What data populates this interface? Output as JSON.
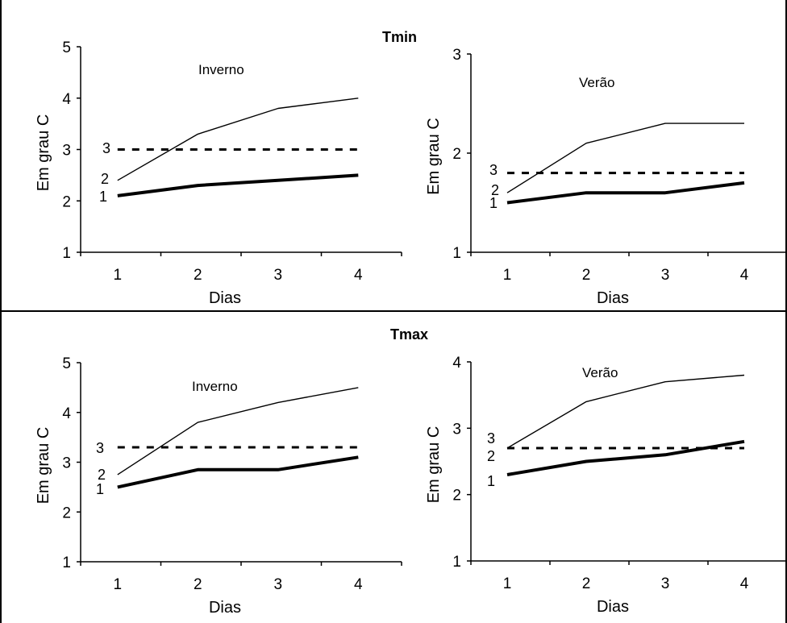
{
  "figure": {
    "sections": [
      {
        "title": "Tmin",
        "panels": [
          0,
          1
        ]
      },
      {
        "title": "Tmax",
        "panels": [
          2,
          3
        ]
      }
    ]
  },
  "chart_data": [
    {
      "type": "line",
      "title": "Inverno",
      "section": "Tmin",
      "xlabel": "Dias",
      "ylabel": "Em grau C",
      "x": [
        1,
        2,
        3,
        4
      ],
      "xticks": [
        "1",
        "2",
        "3",
        "4"
      ],
      "yticks": [
        "1",
        "2",
        "3",
        "4",
        "5"
      ],
      "ylim": [
        1,
        5
      ],
      "grid": false,
      "series": [
        {
          "name": "1",
          "values": [
            2.1,
            2.3,
            2.4,
            2.5
          ],
          "style": "thick",
          "color": "#000000"
        },
        {
          "name": "2",
          "values": [
            2.4,
            3.3,
            3.8,
            4.0
          ],
          "style": "thin",
          "color": "#000000"
        },
        {
          "name": "3",
          "values": [
            3.0,
            3.0,
            3.0,
            3.0
          ],
          "style": "dashed",
          "color": "#000000"
        }
      ]
    },
    {
      "type": "line",
      "title": "Verão",
      "section": "Tmin",
      "xlabel": "Dias",
      "ylabel": "Em grau C",
      "x": [
        1,
        2,
        3,
        4
      ],
      "xticks": [
        "1",
        "2",
        "3",
        "4"
      ],
      "yticks": [
        "1",
        "2",
        "3"
      ],
      "ylim": [
        1,
        3
      ],
      "grid": false,
      "series": [
        {
          "name": "1",
          "values": [
            1.5,
            1.6,
            1.6,
            1.7
          ],
          "style": "thick",
          "color": "#000000"
        },
        {
          "name": "2",
          "values": [
            1.6,
            2.1,
            2.3,
            2.3
          ],
          "style": "thin",
          "color": "#000000"
        },
        {
          "name": "3",
          "values": [
            1.8,
            1.8,
            1.8,
            1.8
          ],
          "style": "dashed",
          "color": "#000000"
        }
      ]
    },
    {
      "type": "line",
      "title": "Inverno",
      "section": "Tmax",
      "xlabel": "Dias",
      "ylabel": "Em grau C",
      "x": [
        1,
        2,
        3,
        4
      ],
      "xticks": [
        "1",
        "2",
        "3",
        "4"
      ],
      "yticks": [
        "1",
        "2",
        "3",
        "4",
        "5"
      ],
      "ylim": [
        1,
        5
      ],
      "grid": false,
      "series": [
        {
          "name": "1",
          "values": [
            2.5,
            2.85,
            2.85,
            3.1
          ],
          "style": "thick",
          "color": "#000000"
        },
        {
          "name": "2",
          "values": [
            2.75,
            3.8,
            4.2,
            4.5
          ],
          "style": "thin",
          "color": "#000000"
        },
        {
          "name": "3",
          "values": [
            3.3,
            3.3,
            3.3,
            3.3
          ],
          "style": "dashed",
          "color": "#000000"
        }
      ]
    },
    {
      "type": "line",
      "title": "Verão",
      "section": "Tmax",
      "xlabel": "Dias",
      "ylabel": "Em grau C",
      "x": [
        1,
        2,
        3,
        4
      ],
      "xticks": [
        "1",
        "2",
        "3",
        "4"
      ],
      "yticks": [
        "1",
        "2",
        "3",
        "4"
      ],
      "ylim": [
        1,
        4
      ],
      "grid": false,
      "series": [
        {
          "name": "1",
          "values": [
            2.3,
            2.5,
            2.6,
            2.8
          ],
          "style": "thick",
          "color": "#000000"
        },
        {
          "name": "2",
          "values": [
            2.7,
            3.4,
            3.7,
            3.8
          ],
          "style": "thin",
          "color": "#000000"
        },
        {
          "name": "3",
          "values": [
            2.7,
            2.7,
            2.7,
            2.7
          ],
          "style": "dashed",
          "color": "#000000"
        }
      ]
    }
  ]
}
